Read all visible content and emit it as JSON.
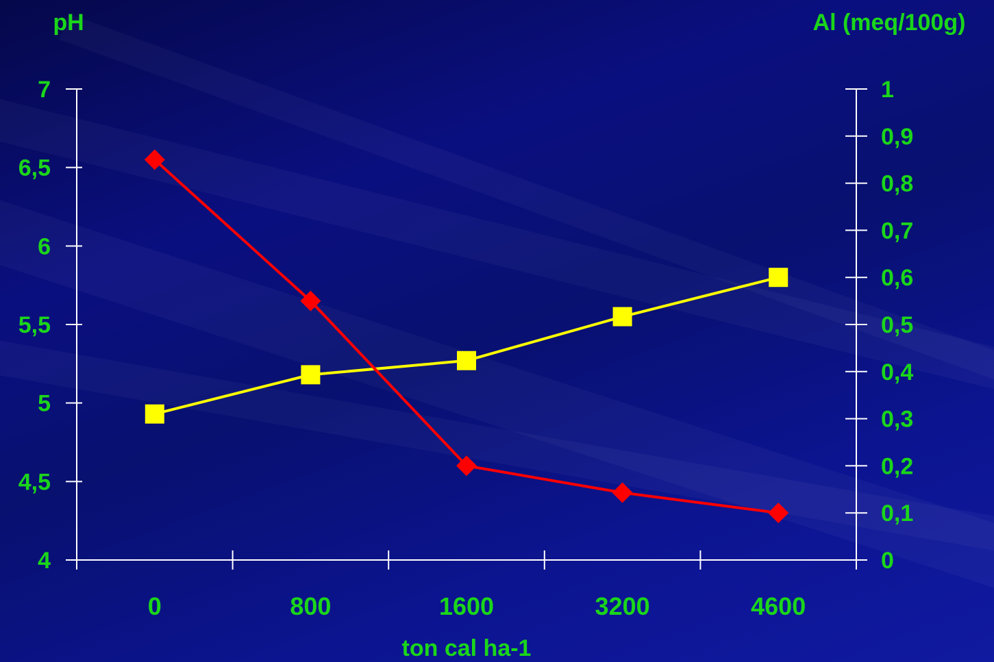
{
  "chart_data": {
    "type": "line",
    "categories": [
      "0",
      "800",
      "1600",
      "3200",
      "4600"
    ],
    "xlabel": "ton cal ha-1",
    "y_left": {
      "label": "pH",
      "range": [
        4,
        7
      ],
      "ticks": [
        "4",
        "4,5",
        "5",
        "5,5",
        "6",
        "6,5",
        "7"
      ],
      "tick_values": [
        4,
        4.5,
        5,
        5.5,
        6,
        6.5,
        7
      ]
    },
    "y_right": {
      "label": "Al (meq/100g)",
      "range": [
        0,
        1
      ],
      "ticks": [
        "0",
        "0,1",
        "0,2",
        "0,3",
        "0,4",
        "0,5",
        "0,6",
        "0,7",
        "0,8",
        "0,9",
        "1"
      ],
      "tick_values": [
        0,
        0.1,
        0.2,
        0.3,
        0.4,
        0.5,
        0.6,
        0.7,
        0.8,
        0.9,
        1
      ]
    },
    "series": [
      {
        "axis": "left",
        "color": "#ffff00",
        "marker": "square",
        "values": [
          4.93,
          5.18,
          5.27,
          5.55,
          5.8
        ]
      },
      {
        "axis": "right",
        "color": "#ff0000",
        "marker": "diamond",
        "values": [
          0.85,
          0.55,
          0.2,
          0.143,
          0.1
        ]
      }
    ],
    "grid": false,
    "legend": "none"
  },
  "colors": {
    "text": "#1bd61b",
    "axis": "#ffffff",
    "background": "#0a0f7a"
  }
}
